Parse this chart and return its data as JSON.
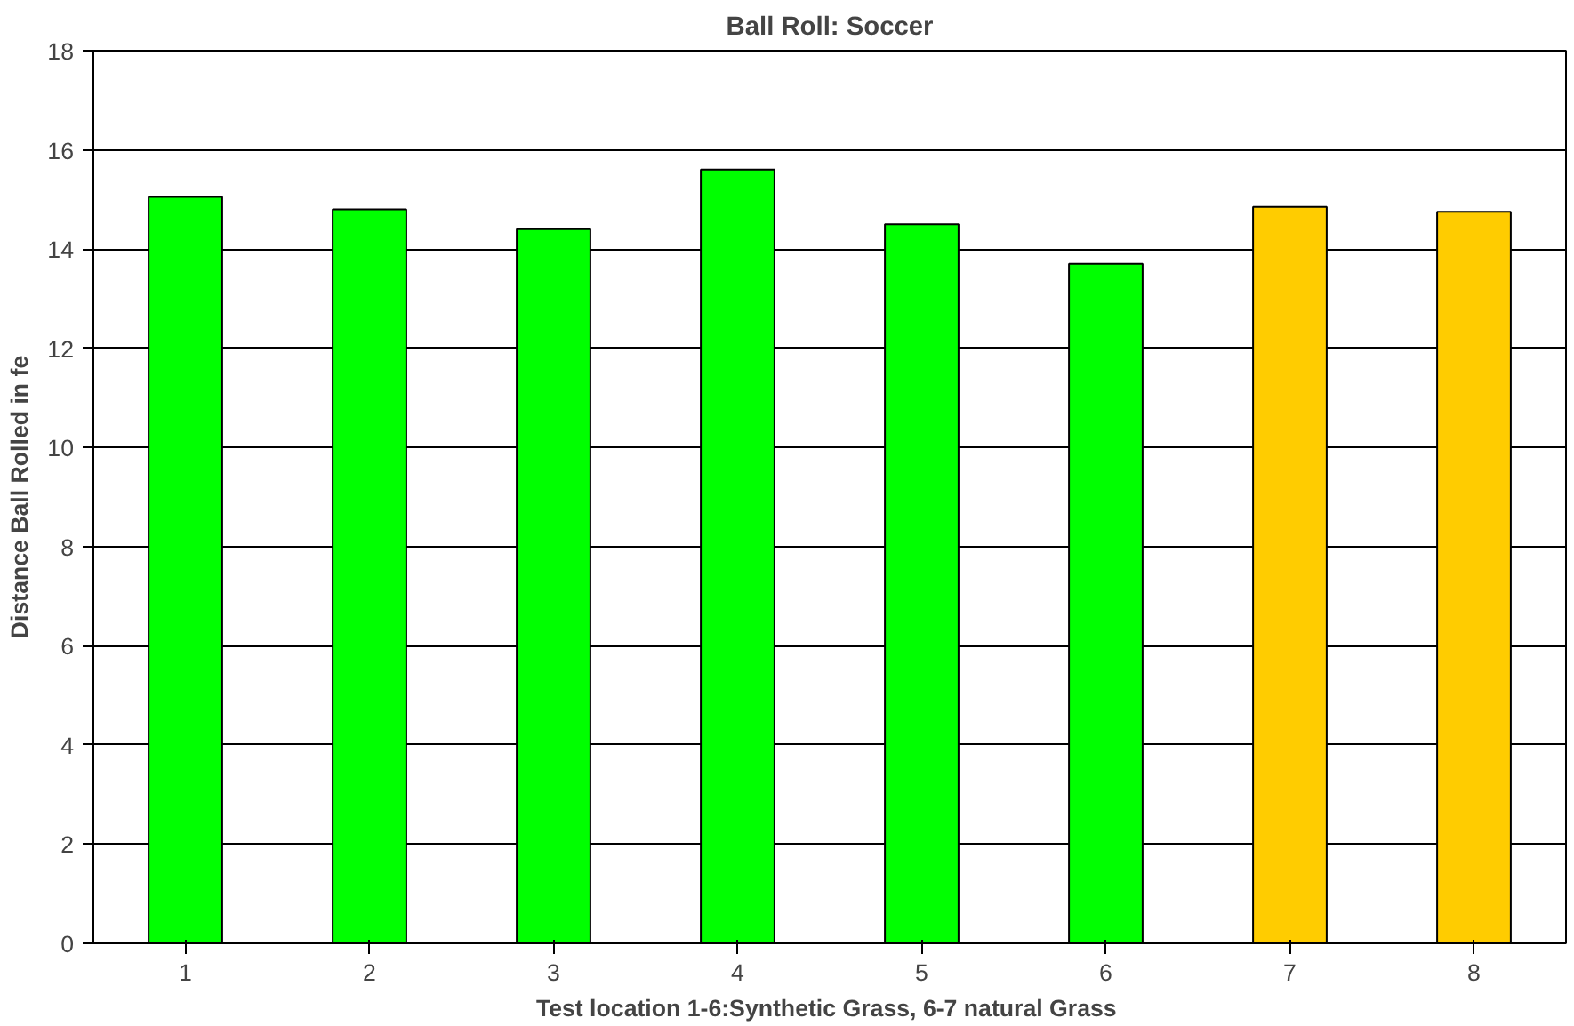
{
  "chart_data": {
    "type": "bar",
    "title": "Ball Roll: Soccer",
    "xlabel": "Test location  1-6:Synthetic Grass, 6-7 natural Grass",
    "ylabel": "Distance Ball Rolled in fe",
    "categories": [
      "1",
      "2",
      "3",
      "4",
      "5",
      "6",
      "7",
      "8"
    ],
    "values": [
      15.05,
      14.8,
      14.4,
      15.6,
      14.5,
      13.7,
      14.85,
      14.75
    ],
    "colors": [
      "#00ff00",
      "#00ff00",
      "#00ff00",
      "#00ff00",
      "#00ff00",
      "#00ff00",
      "#ffcc00",
      "#ffcc00"
    ],
    "ylim": [
      0,
      18
    ],
    "yticks": [
      0,
      2,
      4,
      6,
      8,
      10,
      12,
      14,
      16,
      18
    ],
    "grid": "y"
  }
}
